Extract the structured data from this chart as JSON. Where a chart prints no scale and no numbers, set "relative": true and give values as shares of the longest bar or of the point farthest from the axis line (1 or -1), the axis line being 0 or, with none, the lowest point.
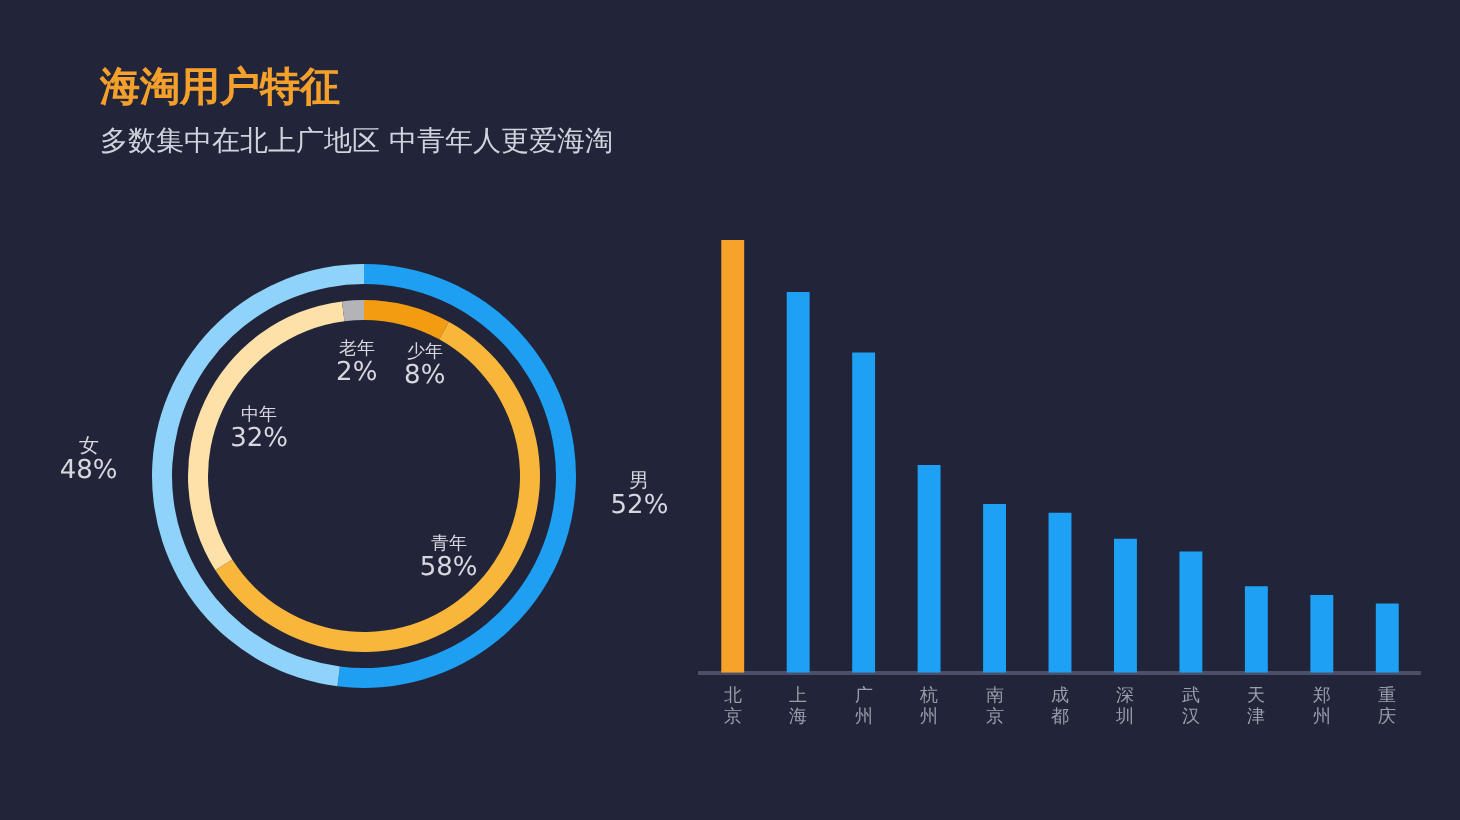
{
  "chart_data": [
    {
      "type": "donut",
      "title": "海淘用户特征",
      "subtitle": "多数集中在北上广地区  中青年人更爱海淘",
      "categories": [
        "男",
        "女"
      ],
      "values": [
        52,
        48
      ],
      "colors": [
        "#1e9ff2",
        "#8fd3fb"
      ],
      "value_labels": [
        "52%",
        "48%"
      ]
    },
    {
      "type": "donut",
      "categories": [
        "少年",
        "青年",
        "中年",
        "老年"
      ],
      "values": [
        8,
        58,
        32,
        2
      ],
      "colors": [
        "#f39c12",
        "#f8b63a",
        "#fde1a8",
        "#b4b4b8"
      ],
      "value_labels": [
        "8%",
        "58%",
        "32%",
        "2%"
      ]
    },
    {
      "type": "bar",
      "categories": [
        "北京",
        "上海",
        "广州",
        "杭州",
        "南京",
        "成都",
        "深圳",
        "武汉",
        "天津",
        "郑州",
        "重庆"
      ],
      "values": [
        1,
        0.88,
        0.74,
        0.48,
        0.39,
        0.37,
        0.31,
        0.28,
        0.2,
        0.18,
        0.16
      ],
      "colors": [
        "#f7a22b",
        "#1ea0f5",
        "#1ea0f5",
        "#1ea0f5",
        "#1ea0f5",
        "#1ea0f5",
        "#1ea0f5",
        "#1ea0f5",
        "#1ea0f5",
        "#1ea0f5",
        "#1ea0f5"
      ],
      "relative": true
    }
  ]
}
